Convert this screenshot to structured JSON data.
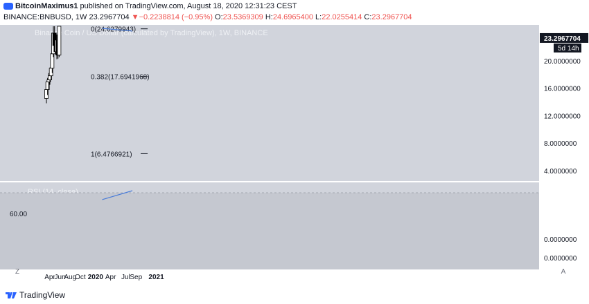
{
  "header": {
    "author": "BitcoinMaximus1",
    "publish_text": " published on TradingView.com, August 18, 2020 12:31:23 CEST",
    "symbol": "BINANCE:BNBUSD, 1W",
    "price": "23.2967704",
    "change_arrow": "▼",
    "change": "−0.2238814 (−0.95%)",
    "o_label": "O:",
    "o_value": "23.5369309",
    "h_label": "H:",
    "h_value": "24.6965400",
    "l_label": "L:",
    "l_value": "22.0255414",
    "c_label": "C:",
    "c_value": "23.2967704"
  },
  "footer": {
    "brand": "TradingView",
    "logo_icon": "tradingview-logo-icon"
  },
  "scale_buttons": {
    "left": "Z",
    "right": "A"
  },
  "colors": {
    "panel_bg": "#d1d4dc",
    "rsi_band": "#c5c8d0",
    "trendline": "#4a7cd8",
    "candle_up": "#ffffff",
    "candle_down": "#000000",
    "text": "#131722",
    "watermark": "#eef0f4"
  },
  "chart_data": [
    {
      "type": "candlestick",
      "title": "Binance Coin / US Dollar (calculated by TradingView), 1W, BINANCE",
      "ylim": [
        2.5,
        25.2
      ],
      "y_ticks": [
        "20.0000000",
        "16.0000000",
        "12.0000000",
        "8.0000000",
        "4.0000000"
      ],
      "x_ticks": [
        "Apr",
        "Jun",
        "Aug",
        "Oct",
        "2020",
        "Apr",
        "Jul",
        "Sep",
        "2021"
      ],
      "last_price_label": "23.2967704",
      "countdown_label": "5d 14h",
      "fib_levels": [
        {
          "label": "0(24.6279943)",
          "value": 24.6279943
        },
        {
          "label": "0.382(17.6941968)",
          "value": 17.6941968
        },
        {
          "label": "1(6.4766921)",
          "value": 6.4766921
        }
      ],
      "candles": [
        {
          "date": "2019-03-11",
          "o": 14.5,
          "h": 16.5,
          "l": 13.8,
          "c": 15.8
        },
        {
          "date": "2019-03-18",
          "o": 15.8,
          "h": 17.5,
          "l": 15.0,
          "c": 16.9
        },
        {
          "date": "2019-03-25",
          "o": 16.9,
          "h": 18.2,
          "l": 15.8,
          "c": 17.2
        },
        {
          "date": "2019-04-01",
          "o": 17.2,
          "h": 19.0,
          "l": 16.5,
          "c": 17.8
        },
        {
          "date": "2019-04-08",
          "o": 17.8,
          "h": 19.6,
          "l": 17.2,
          "c": 18.9
        },
        {
          "date": "2019-04-15",
          "o": 18.9,
          "h": 21.5,
          "l": 18.2,
          "c": 21.0
        },
        {
          "date": "2019-04-22",
          "o": 21.0,
          "h": 25.0,
          "l": 20.5,
          "c": 24.0
        },
        {
          "date": "2019-04-29",
          "o": 24.0,
          "h": 25.0,
          "l": 21.5,
          "c": 22.2
        },
        {
          "date": "2019-05-06",
          "o": 22.2,
          "h": 23.5,
          "l": 20.8,
          "c": 21.3
        },
        {
          "date": "2019-05-13",
          "o": 21.3,
          "h": 23.8,
          "l": 20.2,
          "c": 23.0
        },
        {
          "date": "2019-05-20",
          "o": 23.0,
          "h": 25.0,
          "l": 20.3,
          "c": 20.8
        },
        {
          "date": "2019-05-27",
          "o": 20.8,
          "h": 25.0,
          "l": 20.5,
          "c": 25.0
        }
      ],
      "candles_visible_note": "",
      "trendline": {
        "x_dates": [
          "2020-02-10",
          "2020-08-10"
        ],
        "y_values": [
          24.7,
          24.3
        ]
      }
    },
    {
      "type": "line",
      "title": "RSI (14, close)",
      "ylim": [
        25,
        75
      ],
      "y_ticks": [
        "60.00"
      ],
      "band": [
        30,
        70
      ],
      "right_axis_ticks": [
        "0.0000000",
        "0.0000000"
      ],
      "trendline": {
        "x_dates": [
          "2020-02-10",
          "2020-08-10"
        ],
        "y_values": [
          66.7,
          71.0
        ]
      }
    }
  ]
}
